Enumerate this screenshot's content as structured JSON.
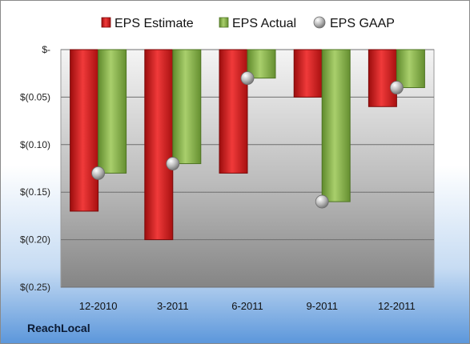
{
  "chart_data": {
    "type": "bar",
    "categories": [
      "12-2010",
      "3-2011",
      "6-2011",
      "9-2011",
      "12-2011"
    ],
    "series": [
      {
        "name": "EPS Estimate",
        "values": [
          -0.17,
          -0.2,
          -0.13,
          -0.05,
          -0.06
        ],
        "color": "#d81e1e"
      },
      {
        "name": "EPS Actual",
        "values": [
          -0.13,
          -0.12,
          -0.03,
          -0.16,
          -0.04
        ],
        "color": "#86b04a"
      }
    ],
    "markers": {
      "name": "EPS GAAP",
      "values": [
        -0.13,
        -0.12,
        -0.03,
        -0.16,
        -0.04
      ],
      "color": "#b0b0b0"
    },
    "ylim": [
      -0.25,
      0
    ],
    "y_ticks": [
      {
        "value": 0,
        "label": "$-"
      },
      {
        "value": -0.05,
        "label": "$(0.05)"
      },
      {
        "value": -0.1,
        "label": "$(0.10)"
      },
      {
        "value": -0.15,
        "label": "$(0.15)"
      },
      {
        "value": -0.2,
        "label": "$(0.20)"
      },
      {
        "value": -0.25,
        "label": "$(0.25)"
      }
    ],
    "grid": true,
    "legend_position": "top"
  },
  "brand": "ReachLocal"
}
